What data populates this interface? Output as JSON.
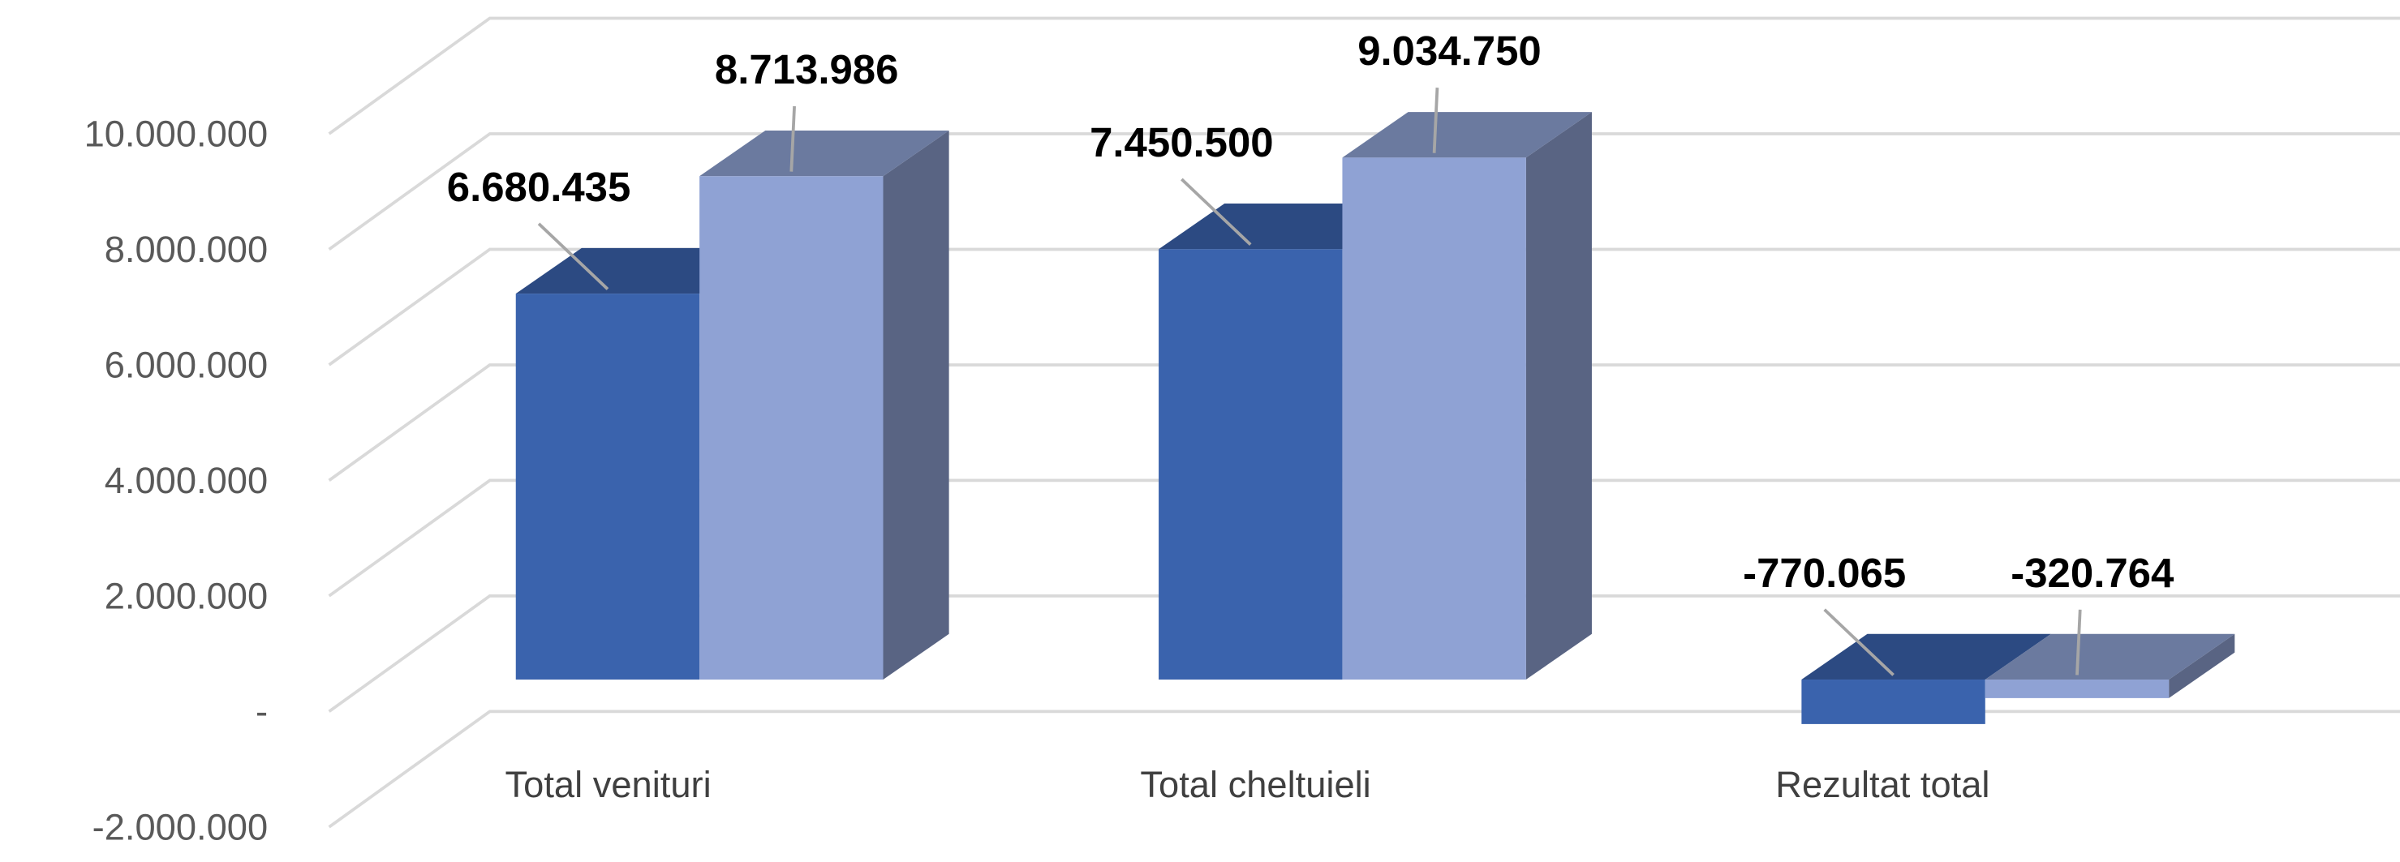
{
  "chart_data": {
    "type": "bar3d",
    "categories": [
      "Total venituri",
      "Total cheltuieli",
      "Rezultat total"
    ],
    "series": [
      {
        "color": "#3a63ad",
        "values": [
          6680435,
          7450500,
          -770065
        ],
        "value_labels": [
          "6.680.435",
          "7.450.500",
          "-770.065"
        ]
      },
      {
        "color": "#8fa2d4",
        "values": [
          8713986,
          9034750,
          -320764
        ],
        "value_labels": [
          "8.713.986",
          "9.034.750",
          "-320.764"
        ]
      }
    ],
    "ylim": [
      -2000000,
      10000000
    ],
    "yticks": [
      {
        "value": -2000000,
        "label": "-2.000.000"
      },
      {
        "value": 0,
        "label": "-"
      },
      {
        "value": 2000000,
        "label": "2.000.000"
      },
      {
        "value": 4000000,
        "label": "4.000.000"
      },
      {
        "value": 6000000,
        "label": "6.000.000"
      },
      {
        "value": 8000000,
        "label": "8.000.000"
      },
      {
        "value": 10000000,
        "label": "10.000.000"
      }
    ],
    "grid": true
  }
}
